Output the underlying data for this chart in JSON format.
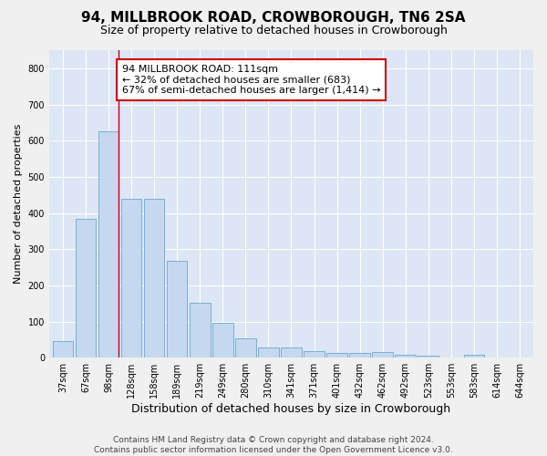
{
  "title": "94, MILLBROOK ROAD, CROWBOROUGH, TN6 2SA",
  "subtitle": "Size of property relative to detached houses in Crowborough",
  "xlabel": "Distribution of detached houses by size in Crowborough",
  "ylabel": "Number of detached properties",
  "categories": [
    "37sqm",
    "67sqm",
    "98sqm",
    "128sqm",
    "158sqm",
    "189sqm",
    "219sqm",
    "249sqm",
    "280sqm",
    "310sqm",
    "341sqm",
    "371sqm",
    "401sqm",
    "432sqm",
    "462sqm",
    "492sqm",
    "523sqm",
    "553sqm",
    "583sqm",
    "614sqm",
    "644sqm"
  ],
  "values": [
    45,
    383,
    625,
    440,
    440,
    268,
    153,
    97,
    53,
    28,
    28,
    17,
    12,
    12,
    15,
    8,
    5,
    0,
    8,
    0,
    0
  ],
  "bar_color": "#c5d8ef",
  "bar_edge_color": "#7bafd4",
  "plot_bg_color": "#dce6f5",
  "fig_bg_color": "#f0f0f0",
  "grid_color": "#ffffff",
  "red_line_x": 2.43,
  "annotation_line1": "94 MILLBROOK ROAD: 111sqm",
  "annotation_line2": "← 32% of detached houses are smaller (683)",
  "annotation_line3": "67% of semi-detached houses are larger (1,414) →",
  "annotation_box_color": "#ffffff",
  "annotation_box_edge_color": "#cc0000",
  "footer_text": "Contains HM Land Registry data © Crown copyright and database right 2024.\nContains public sector information licensed under the Open Government Licence v3.0.",
  "ylim": [
    0,
    850
  ],
  "yticks": [
    0,
    100,
    200,
    300,
    400,
    500,
    600,
    700,
    800
  ],
  "title_fontsize": 11,
  "subtitle_fontsize": 9,
  "xlabel_fontsize": 9,
  "ylabel_fontsize": 8,
  "tick_fontsize": 7,
  "annotation_fontsize": 8,
  "footer_fontsize": 6.5
}
